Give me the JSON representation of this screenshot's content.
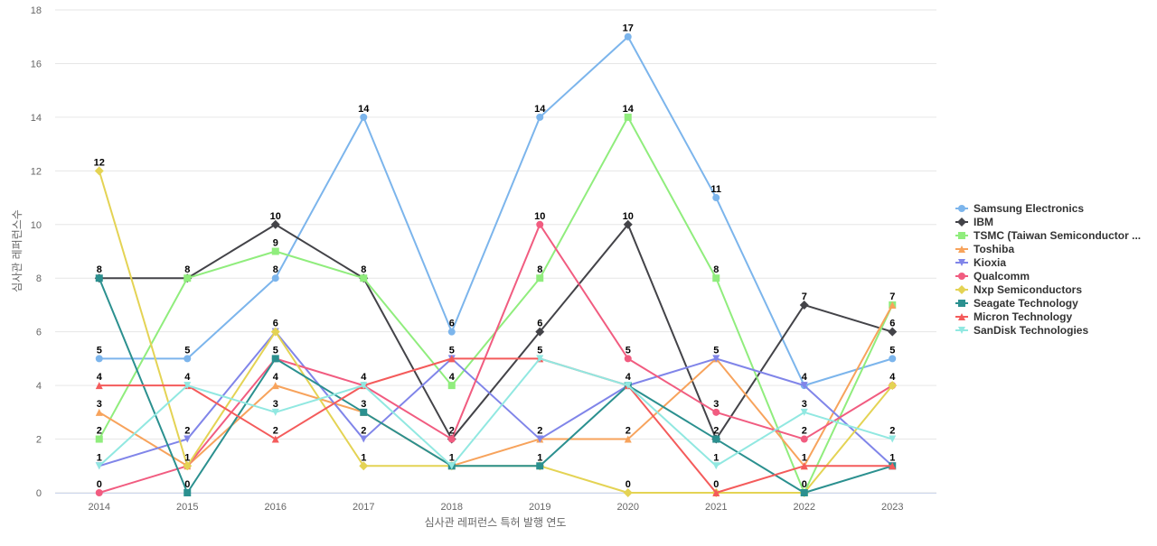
{
  "chart_data": {
    "type": "line",
    "xlabel": "심사관 레퍼런스 특허 발행 연도",
    "ylabel": "심사관 레퍼런스수",
    "ylim": [
      0,
      18
    ],
    "y_ticks": [
      0,
      2,
      4,
      6,
      8,
      10,
      12,
      14,
      16,
      18
    ],
    "grid": true,
    "legend_position": "right",
    "x": [
      "2014",
      "2015",
      "2016",
      "2017",
      "2018",
      "2019",
      "2020",
      "2021",
      "2022",
      "2023"
    ],
    "series": [
      {
        "name": "Samsung Electronics",
        "color": "#7cb5ec",
        "marker": "circle",
        "values": [
          5,
          5,
          8,
          14,
          6,
          14,
          17,
          11,
          4,
          5
        ]
      },
      {
        "name": "IBM",
        "color": "#434348",
        "marker": "diamond",
        "values": [
          8,
          8,
          10,
          8,
          2,
          6,
          10,
          2,
          7,
          6
        ]
      },
      {
        "name": "TSMC (Taiwan Semiconductor ...",
        "color": "#90ed7d",
        "marker": "square",
        "values": [
          2,
          8,
          9,
          8,
          4,
          8,
          14,
          8,
          0,
          7
        ]
      },
      {
        "name": "Toshiba",
        "color": "#f7a35c",
        "marker": "triangle",
        "values": [
          3,
          1,
          4,
          3,
          1,
          2,
          2,
          5,
          1,
          7
        ]
      },
      {
        "name": "Kioxia",
        "color": "#8085e9",
        "marker": "triangle-down",
        "values": [
          1,
          2,
          6,
          2,
          5,
          2,
          4,
          5,
          4,
          1
        ]
      },
      {
        "name": "Qualcomm",
        "color": "#f15c80",
        "marker": "circle",
        "values": [
          0,
          1,
          5,
          4,
          2,
          10,
          5,
          3,
          2,
          4
        ]
      },
      {
        "name": "Nxp Semiconductors",
        "color": "#e4d354",
        "marker": "diamond",
        "values": [
          12,
          1,
          6,
          1,
          1,
          1,
          0,
          0,
          0,
          4
        ]
      },
      {
        "name": "Seagate Technology",
        "color": "#2b908f",
        "marker": "square",
        "values": [
          8,
          0,
          5,
          3,
          1,
          1,
          4,
          2,
          0,
          1
        ]
      },
      {
        "name": "Micron Technology",
        "color": "#f45b5b",
        "marker": "triangle",
        "values": [
          4,
          4,
          2,
          4,
          5,
          5,
          4,
          0,
          1,
          1
        ]
      },
      {
        "name": "SanDisk Technologies",
        "color": "#91e8e1",
        "marker": "triangle-down",
        "values": [
          1,
          4,
          3,
          4,
          1,
          5,
          4,
          1,
          3,
          2
        ]
      }
    ],
    "data_labels": [
      {
        "x": "2014",
        "value": 12
      },
      {
        "x": "2014",
        "value": 8
      },
      {
        "x": "2014",
        "value": 5
      },
      {
        "x": "2014",
        "value": 4
      },
      {
        "x": "2014",
        "value": 3
      },
      {
        "x": "2014",
        "value": 2
      },
      {
        "x": "2014",
        "value": 1
      },
      {
        "x": "2014",
        "value": 0
      },
      {
        "x": "2015",
        "value": 8
      },
      {
        "x": "2015",
        "value": 5
      },
      {
        "x": "2015",
        "value": 4
      },
      {
        "x": "2015",
        "value": 2
      },
      {
        "x": "2015",
        "value": 1
      },
      {
        "x": "2015",
        "value": 0
      },
      {
        "x": "2016",
        "value": 10
      },
      {
        "x": "2016",
        "value": 9
      },
      {
        "x": "2016",
        "value": 8
      },
      {
        "x": "2016",
        "value": 6
      },
      {
        "x": "2016",
        "value": 5
      },
      {
        "x": "2016",
        "value": 4
      },
      {
        "x": "2016",
        "value": 3
      },
      {
        "x": "2016",
        "value": 2
      },
      {
        "x": "2017",
        "value": 14
      },
      {
        "x": "2017",
        "value": 8
      },
      {
        "x": "2017",
        "value": 4
      },
      {
        "x": "2017",
        "value": 3
      },
      {
        "x": "2017",
        "value": 2
      },
      {
        "x": "2017",
        "value": 1
      },
      {
        "x": "2018",
        "value": 6
      },
      {
        "x": "2018",
        "value": 5
      },
      {
        "x": "2018",
        "value": 4
      },
      {
        "x": "2018",
        "value": 2
      },
      {
        "x": "2018",
        "value": 1
      },
      {
        "x": "2019",
        "value": 14
      },
      {
        "x": "2019",
        "value": 10
      },
      {
        "x": "2019",
        "value": 8
      },
      {
        "x": "2019",
        "value": 6
      },
      {
        "x": "2019",
        "value": 5
      },
      {
        "x": "2019",
        "value": 2
      },
      {
        "x": "2019",
        "value": 1
      },
      {
        "x": "2020",
        "value": 17
      },
      {
        "x": "2020",
        "value": 14
      },
      {
        "x": "2020",
        "value": 10
      },
      {
        "x": "2020",
        "value": 5
      },
      {
        "x": "2020",
        "value": 4
      },
      {
        "x": "2020",
        "value": 2
      },
      {
        "x": "2020",
        "value": 0
      },
      {
        "x": "2021",
        "value": 11
      },
      {
        "x": "2021",
        "value": 8
      },
      {
        "x": "2021",
        "value": 5
      },
      {
        "x": "2021",
        "value": 3
      },
      {
        "x": "2021",
        "value": 2
      },
      {
        "x": "2021",
        "value": 1
      },
      {
        "x": "2021",
        "value": 0
      },
      {
        "x": "2022",
        "value": 7
      },
      {
        "x": "2022",
        "value": 4
      },
      {
        "x": "2022",
        "value": 3
      },
      {
        "x": "2022",
        "value": 2
      },
      {
        "x": "2022",
        "value": 1
      },
      {
        "x": "2022",
        "value": 0
      },
      {
        "x": "2023",
        "value": 7
      },
      {
        "x": "2023",
        "value": 6
      },
      {
        "x": "2023",
        "value": 5
      },
      {
        "x": "2023",
        "value": 4
      },
      {
        "x": "2023",
        "value": 2
      },
      {
        "x": "2023",
        "value": 1
      }
    ]
  }
}
